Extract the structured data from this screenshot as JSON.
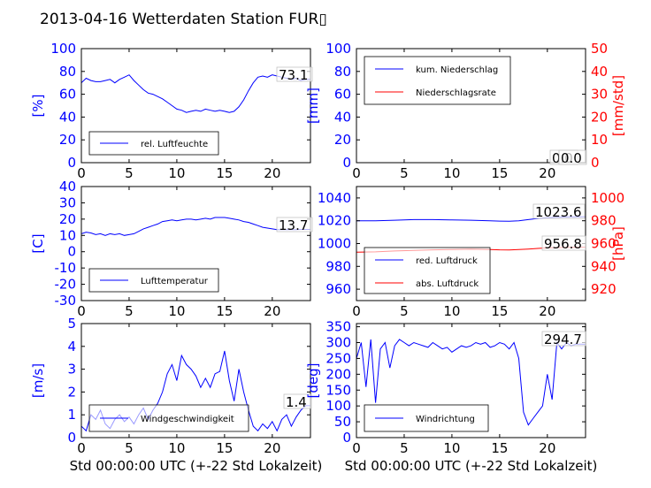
{
  "title": "2013-04-16 Wetterdaten Station FUR▯",
  "colors": {
    "primary": "#0000ff",
    "secondary": "#ff0000",
    "axis": "#000000"
  },
  "chart_data": [
    {
      "id": "humidity",
      "type": "line",
      "ylabel": "[%]",
      "xlim": [
        0,
        24
      ],
      "ylim": [
        0,
        100
      ],
      "xticks": [
        0,
        5,
        10,
        15,
        20
      ],
      "yticks": [
        0,
        20,
        40,
        60,
        80,
        100
      ],
      "last_value_label": "73.1",
      "legend": [
        "rel. Luftfeuchte"
      ],
      "legend_position": "lower-left",
      "series": [
        {
          "name": "rel. Luftfeuchte",
          "color": "#0000ff",
          "x": [
            0,
            0.5,
            1,
            1.5,
            2,
            2.5,
            3,
            3.5,
            4,
            4.5,
            5,
            5.5,
            6,
            6.5,
            7,
            7.5,
            8,
            8.5,
            9,
            9.5,
            10,
            10.5,
            11,
            11.5,
            12,
            12.5,
            13,
            13.5,
            14,
            14.5,
            15,
            15.5,
            16,
            16.5,
            17,
            17.5,
            18,
            18.5,
            19,
            19.5,
            20,
            20.5,
            21,
            21.5,
            22,
            22.5,
            23,
            23.5,
            24
          ],
          "y": [
            70,
            74,
            72,
            71,
            71,
            72,
            73,
            70,
            73,
            75,
            77,
            72,
            68,
            64,
            61,
            60,
            58,
            56,
            53,
            50,
            47,
            46,
            44,
            45,
            46,
            45,
            47,
            46,
            45,
            46,
            45,
            44,
            45,
            49,
            55,
            63,
            70,
            75,
            76,
            75,
            77,
            76,
            75,
            74,
            73,
            74,
            72,
            73,
            73
          ]
        }
      ]
    },
    {
      "id": "precipitation",
      "type": "line",
      "ylabel": "[mm]",
      "y2label": "[mm/std]",
      "xlim": [
        0,
        24
      ],
      "ylim": [
        0,
        100
      ],
      "y2lim": [
        0,
        50
      ],
      "xticks": [
        0,
        5,
        10,
        15,
        20
      ],
      "yticks": [
        0,
        20,
        40,
        60,
        80,
        100
      ],
      "y2ticks": [
        0,
        10,
        20,
        30,
        40,
        50
      ],
      "last_value_labels": [
        "0.0",
        "0.0"
      ],
      "legend": [
        "kum. Niederschlag",
        "Niederschlagsrate"
      ],
      "legend_position": "top-left",
      "series": [
        {
          "name": "kum. Niederschlag",
          "color": "#0000ff",
          "axis": "left",
          "x": [
            0,
            24
          ],
          "y": [
            0,
            0
          ]
        },
        {
          "name": "Niederschlagsrate",
          "color": "#ff0000",
          "axis": "right",
          "x": [
            0,
            24
          ],
          "y": [
            0,
            0
          ]
        }
      ]
    },
    {
      "id": "temperature",
      "type": "line",
      "ylabel": "[C]",
      "xlim": [
        0,
        24
      ],
      "ylim": [
        -30,
        40
      ],
      "xticks": [
        0,
        5,
        10,
        15,
        20
      ],
      "yticks": [
        -30,
        -20,
        -10,
        0,
        10,
        20,
        30,
        40
      ],
      "last_value_label": "13.7",
      "legend": [
        "Lufttemperatur"
      ],
      "legend_position": "lower-left",
      "series": [
        {
          "name": "Lufttemperatur",
          "color": "#0000ff",
          "x": [
            0,
            0.5,
            1,
            1.5,
            2,
            2.5,
            3,
            3.5,
            4,
            4.5,
            5,
            5.5,
            6,
            6.5,
            7,
            7.5,
            8,
            8.5,
            9,
            9.5,
            10,
            10.5,
            11,
            11.5,
            12,
            12.5,
            13,
            13.5,
            14,
            14.5,
            15,
            15.5,
            16,
            16.5,
            17,
            17.5,
            18,
            18.5,
            19,
            19.5,
            20,
            20.5,
            21,
            21.5,
            22,
            22.5,
            23,
            23.5,
            24
          ],
          "y": [
            11,
            12,
            11.5,
            10.5,
            11,
            10,
            11,
            10.5,
            11,
            10,
            10.5,
            11,
            12.5,
            14,
            15,
            16,
            17,
            18.5,
            19,
            19.5,
            19,
            19.5,
            20,
            20,
            19.5,
            20,
            20.5,
            20,
            21,
            21,
            21,
            20.5,
            20,
            19.5,
            18.5,
            18,
            17,
            16,
            15,
            14.5,
            14,
            13.5,
            13.5,
            13.5,
            13.5,
            13.5,
            13.7,
            13.7,
            13.7
          ]
        }
      ]
    },
    {
      "id": "pressure",
      "type": "line",
      "ylabel": "",
      "y2label": "[hPa]",
      "xlim": [
        0,
        24
      ],
      "ylim": [
        950,
        1050
      ],
      "y2lim": [
        910,
        1010
      ],
      "xticks": [
        0,
        5,
        10,
        15,
        20
      ],
      "yticks": [
        960,
        980,
        1000,
        1020,
        1040
      ],
      "y2ticks": [
        920,
        940,
        960,
        980,
        1000
      ],
      "last_value_labels": [
        "1023.6",
        "956.8"
      ],
      "legend": [
        "red. Luftdruck",
        "abs. Luftdruck"
      ],
      "legend_position": "lower-left",
      "series": [
        {
          "name": "red. Luftdruck",
          "color": "#0000ff",
          "axis": "left",
          "x": [
            0,
            2,
            4,
            6,
            8,
            10,
            12,
            14,
            15,
            16,
            17,
            18,
            19,
            20,
            21,
            22,
            23,
            24
          ],
          "y": [
            1020,
            1020,
            1020.5,
            1021,
            1021,
            1020.7,
            1020.5,
            1020,
            1019.7,
            1019.5,
            1020,
            1021,
            1022,
            1022.7,
            1023,
            1023.3,
            1023.5,
            1023.6
          ]
        },
        {
          "name": "abs. Luftdruck",
          "color": "#ff0000",
          "axis": "right",
          "x": [
            0,
            2,
            4,
            6,
            8,
            10,
            12,
            14,
            15,
            16,
            17,
            18,
            19,
            20,
            21,
            22,
            23,
            24
          ],
          "y": [
            952.5,
            952.7,
            953.5,
            954,
            954.5,
            954.8,
            955,
            954.8,
            954.5,
            954.4,
            954.8,
            955.2,
            955.7,
            956.2,
            956.4,
            956.6,
            956.7,
            956.8
          ]
        }
      ]
    },
    {
      "id": "wind_speed",
      "type": "line",
      "ylabel": "[m/s]",
      "xlabel": "Std 00:00:00 UTC (+-22 Std Lokalzeit)",
      "xlim": [
        0,
        24
      ],
      "ylim": [
        0,
        5
      ],
      "xticks": [
        0,
        5,
        10,
        15,
        20
      ],
      "yticks": [
        0,
        1,
        2,
        3,
        4,
        5
      ],
      "last_value_label": "1.4",
      "legend": [
        "Windgeschwindigkeit"
      ],
      "legend_position": "lower-left",
      "series": [
        {
          "name": "Windgeschwindigkeit",
          "color": "#0000ff",
          "x": [
            0,
            0.5,
            1,
            1.5,
            2,
            2.5,
            3,
            3.5,
            4,
            4.5,
            5,
            5.5,
            6,
            6.5,
            7,
            7.5,
            8,
            8.5,
            9,
            9.5,
            10,
            10.5,
            11,
            11.5,
            12,
            12.5,
            13,
            13.5,
            14,
            14.5,
            15,
            15.5,
            16,
            16.5,
            17,
            17.5,
            18,
            18.5,
            19,
            19.5,
            20,
            20.5,
            21,
            21.5,
            22,
            22.5,
            23,
            23.5,
            24
          ],
          "y": [
            0.5,
            0.3,
            1.0,
            0.8,
            1.2,
            0.6,
            0.4,
            0.8,
            1.0,
            0.7,
            0.9,
            0.6,
            1.0,
            1.3,
            0.8,
            1.2,
            1.5,
            2.0,
            2.8,
            3.2,
            2.5,
            3.6,
            3.2,
            3.0,
            2.7,
            2.2,
            2.6,
            2.2,
            2.8,
            2.9,
            3.8,
            2.5,
            1.6,
            3.0,
            2.0,
            1.2,
            0.5,
            0.3,
            0.6,
            0.4,
            0.7,
            0.3,
            0.8,
            1.0,
            0.5,
            0.9,
            1.2,
            1.4,
            1.4
          ]
        }
      ]
    },
    {
      "id": "wind_direction",
      "type": "line",
      "ylabel": "[deg]",
      "xlabel": "Std 00:00:00 UTC (+-22 Std Lokalzeit)",
      "xlim": [
        0,
        24
      ],
      "ylim": [
        0,
        360
      ],
      "xticks": [
        0,
        5,
        10,
        15,
        20
      ],
      "yticks": [
        0,
        50,
        100,
        150,
        200,
        250,
        300,
        350
      ],
      "last_value_label": "294.7",
      "legend": [
        "Windrichtung"
      ],
      "legend_position": "lower-left",
      "series": [
        {
          "name": "Windrichtung",
          "color": "#0000ff",
          "x": [
            0,
            0.5,
            1,
            1.5,
            2,
            2.5,
            3,
            3.5,
            4,
            4.5,
            5,
            5.5,
            6,
            6.5,
            7,
            7.5,
            8,
            8.5,
            9,
            9.5,
            10,
            10.5,
            11,
            11.5,
            12,
            12.5,
            13,
            13.5,
            14,
            14.5,
            15,
            15.5,
            16,
            16.5,
            17,
            17.5,
            18,
            18.5,
            19,
            19.5,
            20,
            20.5,
            21,
            21.5,
            22,
            22.5,
            23,
            23.5,
            24
          ],
          "y": [
            250,
            300,
            160,
            310,
            110,
            280,
            300,
            220,
            290,
            310,
            300,
            290,
            300,
            295,
            290,
            285,
            300,
            290,
            280,
            285,
            270,
            280,
            290,
            285,
            290,
            300,
            295,
            300,
            285,
            290,
            300,
            295,
            280,
            300,
            250,
            80,
            40,
            60,
            80,
            100,
            200,
            120,
            300,
            280,
            300,
            290,
            295,
            295,
            294.7
          ]
        }
      ]
    }
  ]
}
